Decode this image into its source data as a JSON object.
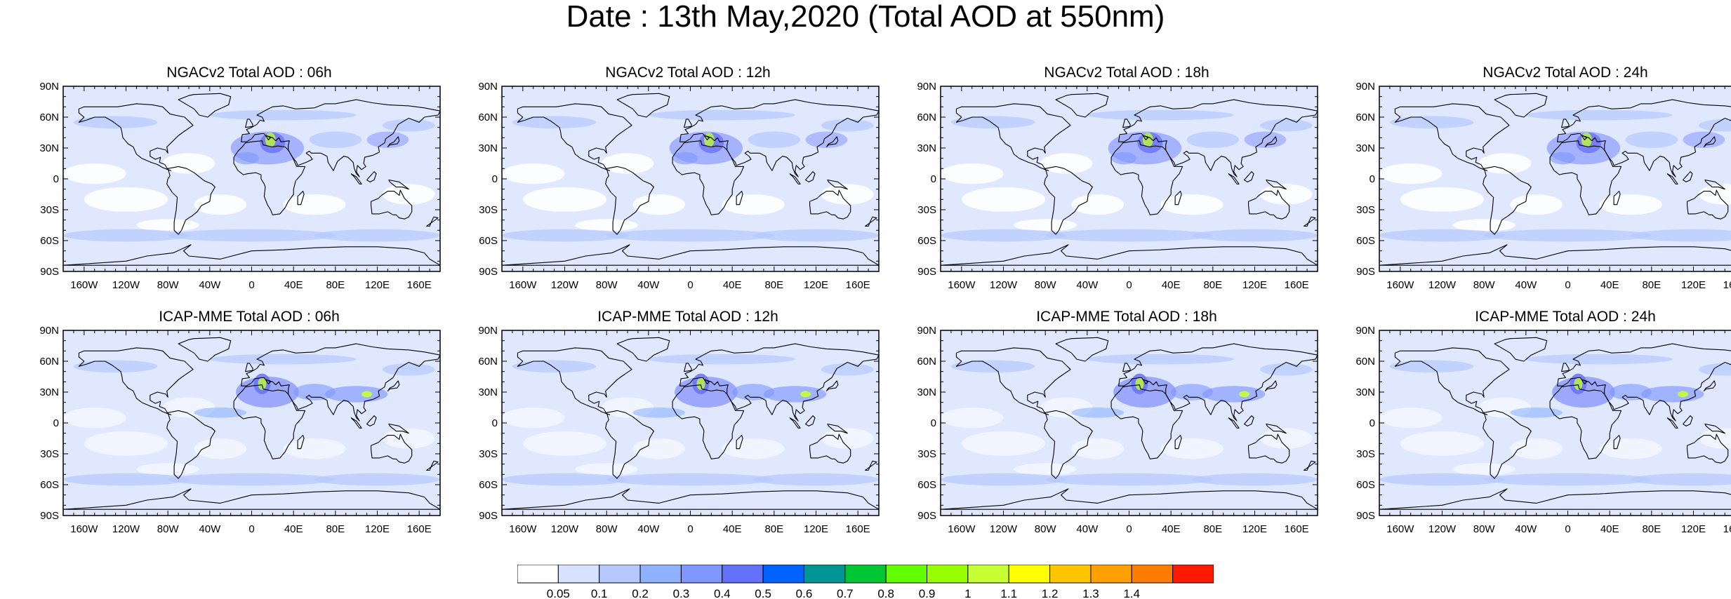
{
  "title": "Date : 13th May,2020 (Total AOD at 550nm)",
  "panels": [
    {
      "title": "NGACv2 Total AOD : 06h"
    },
    {
      "title": "NGACv2 Total AOD : 12h"
    },
    {
      "title": "NGACv2 Total AOD : 18h"
    },
    {
      "title": "NGACv2 Total AOD : 24h"
    },
    {
      "title": "ICAP-MME Total AOD : 06h"
    },
    {
      "title": "ICAP-MME Total AOD : 12h"
    },
    {
      "title": "ICAP-MME Total AOD : 18h"
    },
    {
      "title": "ICAP-MME Total AOD : 24h"
    }
  ],
  "axes": {
    "lat_labels": [
      "90N",
      "60N",
      "30N",
      "0",
      "30S",
      "60S",
      "90S"
    ],
    "lon_labels": [
      "160W",
      "120W",
      "80W",
      "40W",
      "0",
      "40E",
      "80E",
      "120E",
      "160E"
    ]
  },
  "colorbar": {
    "labels": [
      "0.05",
      "0.1",
      "0.2",
      "0.3",
      "0.4",
      "0.5",
      "0.6",
      "0.7",
      "0.8",
      "0.9",
      "1",
      "1.1",
      "1.2",
      "1.3",
      "1.4"
    ],
    "colors": [
      "#ffffff",
      "#d6e2ff",
      "#b5c9ff",
      "#8eb2ff",
      "#7f96ff",
      "#6370f8",
      "#0062ff",
      "#009696",
      "#00c633",
      "#63ff00",
      "#96ff00",
      "#c6ff33",
      "#ffff00",
      "#ffc600",
      "#ffa000",
      "#ff7c00",
      "#ff1900"
    ]
  },
  "colors": {
    "land_outline": "#000000",
    "background_haze": "#dfe8ff"
  }
}
